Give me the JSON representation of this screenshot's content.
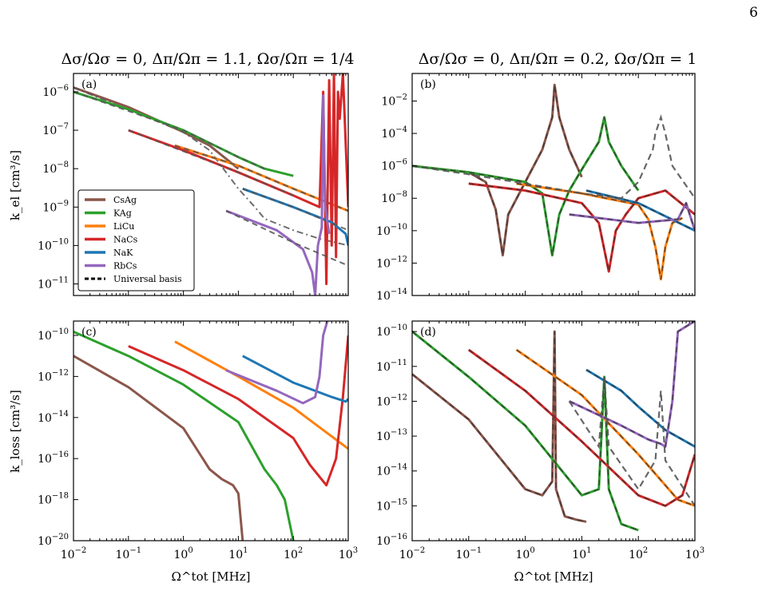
{
  "page_number": "6",
  "titles": {
    "left": "Δσ/Ωσ = 0, Δπ/Ωπ = 1.1, Ωσ/Ωπ = 1/4",
    "right": "Δσ/Ωσ = 0, Δπ/Ωπ = 0.2, Ωσ/Ωπ = 1"
  },
  "axis_labels": {
    "ylabel_top": "k_el [cm³/s]",
    "ylabel_bottom": "k_loss [cm³/s]",
    "xlabel": "Ω^tot [MHz]"
  },
  "legend": [
    "CsAg",
    "KAg",
    "LiCu",
    "NaCs",
    "NaK",
    "RbCs",
    "Universal basis"
  ],
  "colors": {
    "CsAg": "#8c564b",
    "KAg": "#2ca02c",
    "LiCu": "#ff7f0e",
    "NaCs": "#d62728",
    "NaK": "#1f77b4",
    "RbCs": "#9467bd",
    "Universal basis": "#555555"
  },
  "chart_data": [
    {
      "label": "(a)",
      "type": "line",
      "xscale": "log",
      "yscale": "log",
      "xlim": [
        0.01,
        1000
      ],
      "ylim": [
        5e-12,
        3e-06
      ],
      "yticks": [
        "10^-11",
        "10^-10",
        "10^-9",
        "10^-8",
        "10^-7",
        "10^-6"
      ],
      "legend_position": "lower-left",
      "series": [
        {
          "name": "CsAg",
          "x": [
            0.01,
            0.1,
            1,
            3,
            10
          ],
          "y": [
            1.3e-06,
            4e-07,
            9e-08,
            4e-08,
            1e-08
          ],
          "universal": {
            "style": "dashdot",
            "x": [
              0.01,
              1,
              3,
              10,
              20,
              30,
              100,
              300,
              1000
            ],
            "y": [
              1.3e-06,
              9e-08,
              3e-08,
              3e-09,
              1e-09,
              5e-10,
              2.5e-10,
              1.5e-10,
              1e-10
            ]
          }
        },
        {
          "name": "KAg",
          "x": [
            0.01,
            0.1,
            1,
            10,
            30,
            100
          ],
          "y": [
            1e-06,
            3.5e-07,
            1e-07,
            2e-08,
            1e-08,
            6.5e-09
          ],
          "universal": {
            "style": "dashed",
            "x": [
              0.01,
              1,
              10,
              30
            ],
            "y": [
              1e-06,
              1e-07,
              2e-08,
              1e-08
            ]
          }
        },
        {
          "name": "LiCu",
          "x": [
            0.7,
            10,
            100,
            1000
          ],
          "y": [
            4e-08,
            1.2e-08,
            3e-09,
            8e-10
          ],
          "universal": {
            "style": "dashed",
            "x": [
              0.7,
              10,
              100,
              1000
            ],
            "y": [
              4e-08,
              1.2e-08,
              3e-09,
              8e-10
            ]
          }
        },
        {
          "name": "NaCs",
          "x": [
            0.1,
            1,
            10,
            100,
            300,
            350,
            400,
            450,
            500,
            550,
            600,
            650,
            700,
            800,
            1000
          ],
          "y": [
            1e-07,
            3e-08,
            8e-09,
            2e-09,
            1e-09,
            1e-06,
            1e-11,
            2e-06,
            1e-10,
            3e-06,
            5e-11,
            1e-06,
            2e-07,
            3e-06,
            1e-09
          ],
          "universal": {
            "style": "dashed",
            "x": [
              0.1,
              10,
              100
            ],
            "y": [
              1e-07,
              8e-09,
              2e-09
            ]
          }
        },
        {
          "name": "NaK",
          "x": [
            12,
            100,
            500,
            900,
            1000
          ],
          "y": [
            3e-09,
            1e-09,
            4e-10,
            2e-10,
            1e-10
          ],
          "universal": {
            "style": "dashed",
            "x": [
              12,
              100,
              1000
            ],
            "y": [
              3e-09,
              1e-09,
              2.5e-10
            ]
          }
        },
        {
          "name": "RbCs",
          "x": [
            6,
            50,
            150,
            220,
            250,
            280,
            330,
            350,
            380,
            450
          ],
          "y": [
            8e-10,
            2.5e-10,
            8e-11,
            2e-11,
            5e-12,
            1e-10,
            3e-10,
            8e-07,
            1e-09,
            2e-10
          ],
          "universal": {
            "style": "dashed",
            "x": [
              6,
              100,
              1000
            ],
            "y": [
              8e-10,
              1.2e-10,
              3e-11
            ]
          }
        }
      ]
    },
    {
      "label": "(b)",
      "type": "line",
      "xscale": "log",
      "yscale": "log",
      "xlim": [
        0.01,
        1000
      ],
      "ylim": [
        1e-14,
        0.5
      ],
      "yticks": [
        "10^-14",
        "10^-12",
        "10^-10",
        "10^-8",
        "10^-6",
        "10^-4",
        "10^-2"
      ],
      "series": [
        {
          "name": "CsAg",
          "x": [
            0.01,
            0.1,
            0.2,
            0.3,
            0.4,
            0.5,
            1,
            2,
            3,
            3.3,
            4,
            6,
            10
          ],
          "y": [
            1e-06,
            4e-07,
            1e-07,
            2e-09,
            3e-12,
            1e-09,
            1e-07,
            1e-05,
            0.001,
            0.1,
            0.001,
            1e-05,
            2e-07
          ]
        },
        {
          "name": "KAg",
          "x": [
            0.01,
            0.1,
            1,
            2,
            3,
            4,
            6,
            10,
            20,
            25,
            30,
            50,
            100
          ],
          "y": [
            1e-06,
            4e-07,
            1e-07,
            2e-08,
            3e-12,
            1e-09,
            3e-08,
            6e-07,
            3e-05,
            0.001,
            3e-05,
            1e-06,
            3e-08
          ]
        },
        {
          "name": "LiCu",
          "x": [
            0.7,
            10,
            100,
            150,
            200,
            250,
            300,
            400,
            600
          ],
          "y": [
            8e-08,
            2e-08,
            4e-09,
            5e-10,
            1e-11,
            1e-13,
            1e-11,
            3e-10,
            6e-10
          ]
        },
        {
          "name": "NaCs",
          "x": [
            0.1,
            1,
            10,
            20,
            30,
            40,
            60,
            100,
            300,
            1000
          ],
          "y": [
            8e-08,
            3e-08,
            5e-09,
            3e-10,
            3e-13,
            1e-10,
            1e-09,
            1e-08,
            3e-08,
            1e-09
          ]
        },
        {
          "name": "NaK",
          "x": [
            12,
            100,
            1000
          ],
          "y": [
            3e-08,
            5e-09,
            1e-10
          ]
        },
        {
          "name": "RbCs",
          "x": [
            6,
            100,
            500,
            700,
            1000
          ],
          "y": [
            1e-09,
            3e-10,
            5e-10,
            5e-09,
            1e-10
          ]
        },
        {
          "name": "Universal basis",
          "x": [
            0.01,
            0.1,
            1,
            10,
            50,
            100,
            180,
            200,
            250,
            300,
            400,
            1000
          ],
          "y": [
            1e-06,
            3e-07,
            8e-08,
            2e-08,
            1e-08,
            1e-07,
            1e-05,
            0.0001,
            0.001,
            0.0001,
            1e-06,
            1e-08
          ]
        }
      ]
    },
    {
      "label": "(c)",
      "type": "line",
      "xscale": "log",
      "yscale": "log",
      "xlim": [
        0.01,
        1000
      ],
      "ylim": [
        1e-20,
        5e-10
      ],
      "yticks": [
        "10^-20",
        "10^-18",
        "10^-16",
        "10^-14",
        "10^-12",
        "10^-10"
      ],
      "series": [
        {
          "name": "CsAg",
          "x": [
            0.01,
            0.1,
            1,
            3,
            5,
            8,
            10,
            12
          ],
          "y": [
            1e-11,
            3e-13,
            3e-15,
            3e-17,
            1e-17,
            5e-18,
            2e-18,
            1e-20
          ]
        },
        {
          "name": "KAg",
          "x": [
            0.01,
            0.1,
            1,
            10,
            30,
            50,
            70,
            100
          ],
          "y": [
            1.5e-10,
            1e-11,
            4e-13,
            6e-15,
            3e-17,
            5e-18,
            1e-18,
            1e-20
          ]
        },
        {
          "name": "LiCu",
          "x": [
            0.7,
            10,
            100,
            1000
          ],
          "y": [
            5e-11,
            1e-12,
            3e-14,
            3e-16
          ]
        },
        {
          "name": "NaCs",
          "x": [
            0.1,
            1,
            10,
            100,
            200,
            400,
            600,
            800,
            1000
          ],
          "y": [
            3e-11,
            2e-12,
            8e-14,
            1e-15,
            5e-17,
            5e-18,
            1e-16,
            1e-13,
            1e-10
          ]
        },
        {
          "name": "NaK",
          "x": [
            12,
            100,
            500,
            900,
            1000
          ],
          "y": [
            1e-11,
            5e-13,
            1e-13,
            6e-14,
            8e-14
          ]
        },
        {
          "name": "RbCs",
          "x": [
            6,
            50,
            150,
            250,
            300,
            350,
            450,
            1000
          ],
          "y": [
            2e-12,
            2e-13,
            5e-14,
            1e-13,
            1e-12,
            1e-10,
            1e-09,
            1e-09
          ]
        }
      ]
    },
    {
      "label": "(d)",
      "type": "line",
      "xscale": "log",
      "yscale": "log",
      "xlim": [
        0.01,
        1000
      ],
      "ylim": [
        1e-16,
        2e-10
      ],
      "yticks": [
        "10^-16",
        "10^-15",
        "10^-14",
        "10^-13",
        "10^-12",
        "10^-11",
        "10^-10"
      ],
      "series": [
        {
          "name": "CsAg",
          "x": [
            0.01,
            0.1,
            1,
            2,
            3,
            3.3,
            3.5,
            5,
            8,
            12
          ],
          "y": [
            6e-12,
            3e-13,
            3e-15,
            2e-15,
            5e-15,
            1e-10,
            3e-15,
            5e-16,
            4e-16,
            3.5e-16
          ]
        },
        {
          "name": "KAg",
          "x": [
            0.01,
            0.1,
            1,
            10,
            20,
            25,
            30,
            50,
            100
          ],
          "y": [
            1e-10,
            5e-12,
            2e-13,
            2e-15,
            3e-15,
            5e-12,
            3e-15,
            3e-16,
            2e-16
          ]
        },
        {
          "name": "LiCu",
          "x": [
            0.7,
            10,
            100,
            500,
            1000
          ],
          "y": [
            3e-11,
            1.5e-12,
            3e-14,
            1.5e-15,
            1e-15
          ]
        },
        {
          "name": "NaCs",
          "x": [
            0.1,
            1,
            10,
            100,
            300,
            600,
            1000
          ],
          "y": [
            3e-11,
            2e-12,
            7e-14,
            2e-15,
            1e-15,
            2e-15,
            3e-14
          ]
        },
        {
          "name": "NaK",
          "x": [
            12,
            50,
            100,
            300,
            1000
          ],
          "y": [
            8e-12,
            2e-12,
            7e-13,
            1.5e-13,
            5e-14
          ]
        },
        {
          "name": "RbCs",
          "x": [
            6,
            50,
            150,
            250,
            300,
            400,
            500,
            1000
          ],
          "y": [
            1e-12,
            2e-13,
            8e-14,
            6e-14,
            5e-14,
            1e-12,
            1e-10,
            2e-10
          ]
        },
        {
          "name": "Universal basis",
          "x": [
            6,
            20,
            25,
            30,
            100,
            200,
            250,
            300,
            1000
          ],
          "y": [
            1e-12,
            5e-14,
            5e-12,
            5e-14,
            3e-15,
            2e-14,
            2e-12,
            2e-14,
            1e-15
          ]
        }
      ]
    }
  ]
}
